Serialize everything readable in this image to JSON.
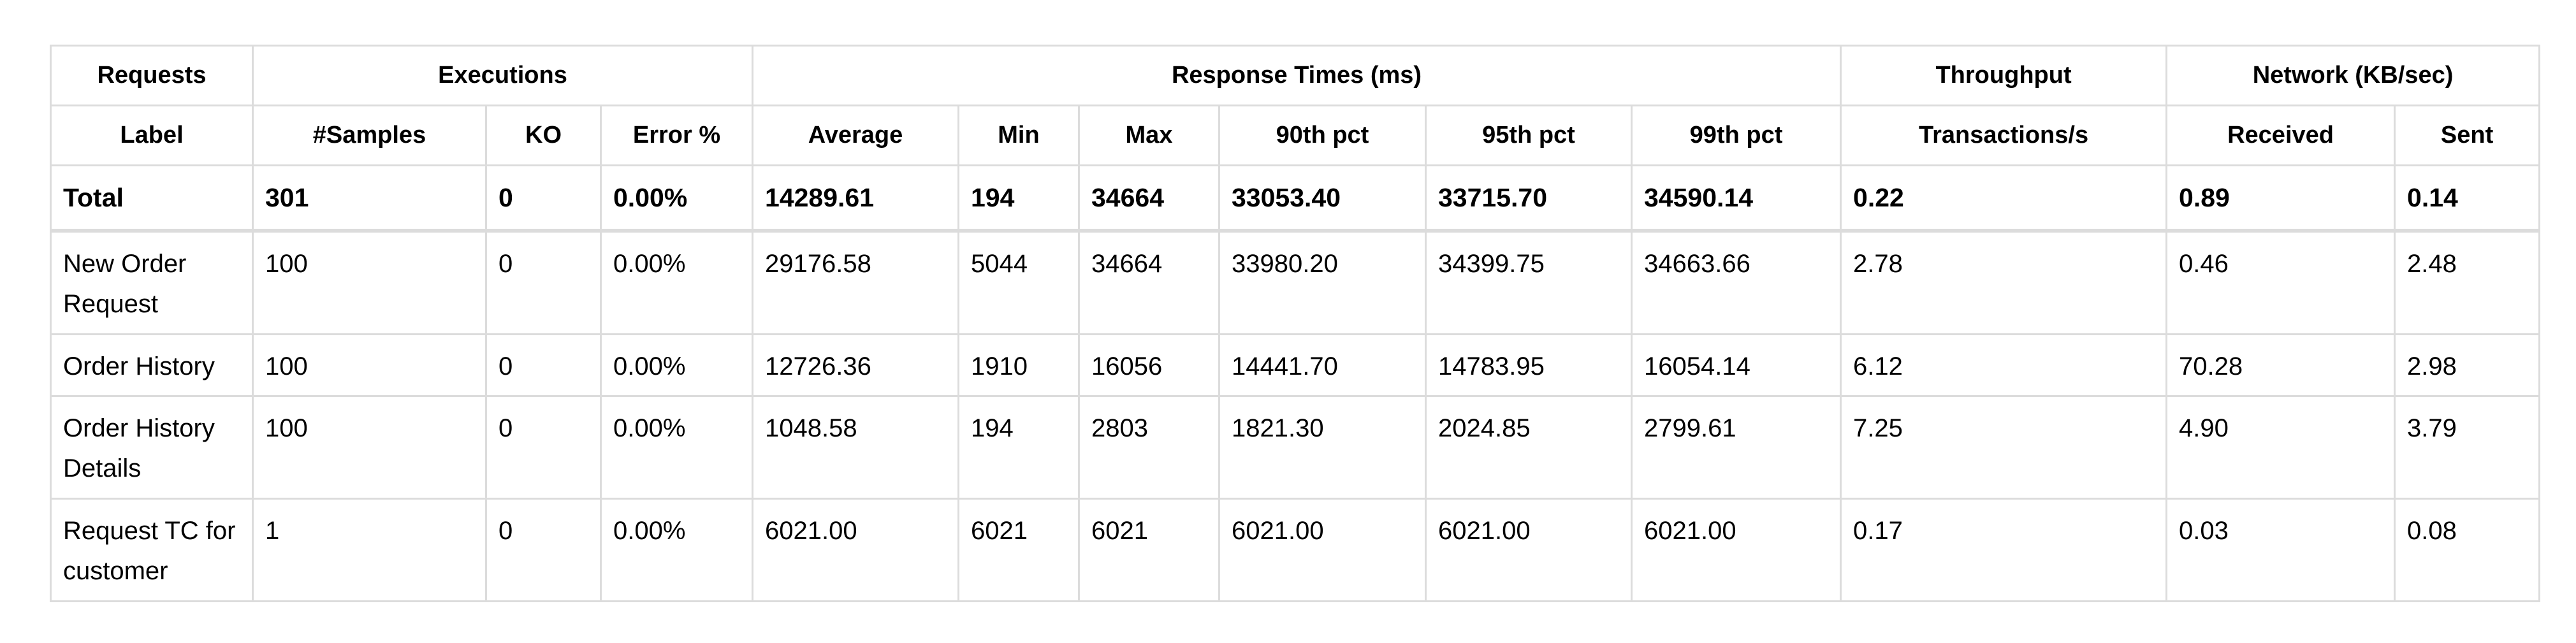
{
  "group_headers": {
    "requests": "Requests",
    "executions": "Executions",
    "response_times": "Response Times (ms)",
    "throughput": "Throughput",
    "network": "Network (KB/sec)"
  },
  "column_headers": {
    "label": "Label",
    "samples": "#Samples",
    "ko": "KO",
    "error_pct": "Error %",
    "average": "Average",
    "min": "Min",
    "max": "Max",
    "p90": "90th pct",
    "p95": "95th pct",
    "p99": "99th pct",
    "tps": "Transactions/s",
    "received": "Received",
    "sent": "Sent"
  },
  "total": {
    "label": "Total",
    "samples": "301",
    "ko": "0",
    "error_pct": "0.00%",
    "average": "14289.61",
    "min": "194",
    "max": "34664",
    "p90": "33053.40",
    "p95": "33715.70",
    "p99": "34590.14",
    "tps": "0.22",
    "received": "0.89",
    "sent": "0.14"
  },
  "rows": [
    {
      "label": "New Order Request",
      "samples": "100",
      "ko": "0",
      "error_pct": "0.00%",
      "average": "29176.58",
      "min": "5044",
      "max": "34664",
      "p90": "33980.20",
      "p95": "34399.75",
      "p99": "34663.66",
      "tps": "2.78",
      "received": "0.46",
      "sent": "2.48"
    },
    {
      "label": "Order History",
      "samples": "100",
      "ko": "0",
      "error_pct": "0.00%",
      "average": "12726.36",
      "min": "1910",
      "max": "16056",
      "p90": "14441.70",
      "p95": "14783.95",
      "p99": "16054.14",
      "tps": "6.12",
      "received": "70.28",
      "sent": "2.98"
    },
    {
      "label": "Order History Details",
      "samples": "100",
      "ko": "0",
      "error_pct": "0.00%",
      "average": "1048.58",
      "min": "194",
      "max": "2803",
      "p90": "1821.30",
      "p95": "2024.85",
      "p99": "2799.61",
      "tps": "7.25",
      "received": "4.90",
      "sent": "3.79"
    },
    {
      "label": "Request TC for customer",
      "samples": "1",
      "ko": "0",
      "error_pct": "0.00%",
      "average": "6021.00",
      "min": "6021",
      "max": "6021",
      "p90": "6021.00",
      "p95": "6021.00",
      "p99": "6021.00",
      "tps": "0.17",
      "received": "0.03",
      "sent": "0.08"
    }
  ]
}
